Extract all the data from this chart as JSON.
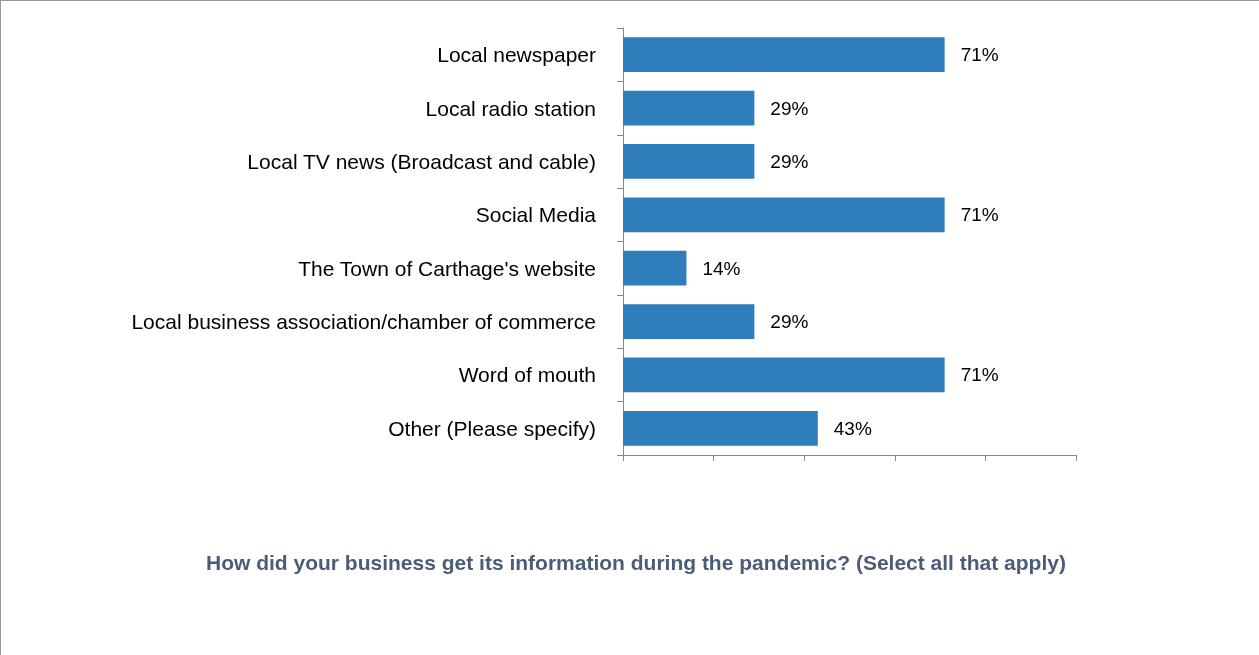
{
  "chart_data": {
    "type": "bar",
    "orientation": "horizontal",
    "title": "How did your business get its information during the pandemic? (Select all that apply)",
    "categories": [
      "Local newspaper",
      "Local radio station",
      "Local TV news (Broadcast and cable)",
      "Social Media",
      "The Town of Carthage's website",
      "Local business association/chamber of commerce",
      "Word of mouth",
      "Other (Please specify)"
    ],
    "values": [
      71,
      29,
      29,
      71,
      14,
      29,
      71,
      43
    ],
    "value_labels": [
      "71%",
      "29%",
      "29%",
      "71%",
      "14%",
      "29%",
      "71%",
      "43%"
    ],
    "color": "#2e7ebb",
    "xlim": [
      0,
      100
    ],
    "xticks": [
      {
        "value": 0,
        "label": null
      },
      {
        "value": 20,
        "label": null
      },
      {
        "value": 40,
        "label": null
      },
      {
        "value": 60,
        "label": null
      },
      {
        "value": 80,
        "label": null
      },
      {
        "value": 100,
        "label": null
      }
    ],
    "tick_labels": "y",
    "grid": false
  }
}
